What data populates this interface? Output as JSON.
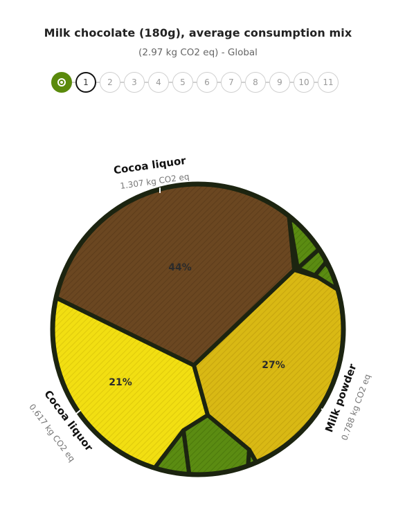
{
  "header": {
    "title": "Milk chocolate (180g), average consumption mix",
    "subtitle": "(2.97 kg CO2 eq) - Global"
  },
  "stepper": {
    "home_icon": "target-icon",
    "steps": [
      "1",
      "2",
      "3",
      "4",
      "5",
      "6",
      "7",
      "8",
      "9",
      "10",
      "11"
    ],
    "current": "1"
  },
  "colors": {
    "brown": "#6b4721",
    "yellow": "#f2df12",
    "mustard": "#d9b914",
    "green": "#5b8c12",
    "border": "#1c2410"
  },
  "chart_data": {
    "type": "voronoi-treemap",
    "title": "Milk chocolate (180g), average consumption mix",
    "subtitle": "(2.97 kg CO2 eq) - Global",
    "total": "2.97 kg CO2 eq",
    "cells": [
      {
        "name": "Cocoa liquor",
        "value_text": "1.307 kg CO2 eq",
        "percent_label": "44%",
        "color": "brown"
      },
      {
        "name": "Milk powder",
        "value_text": "0.788 kg CO2 eq",
        "percent_label": "27%",
        "color": "mustard"
      },
      {
        "name": "Cocoa liquor",
        "value_text": "0.617 kg CO2 eq",
        "percent_label": "21%",
        "color": "yellow"
      },
      {
        "name": "",
        "value_text": "",
        "percent_label": "",
        "color": "green"
      },
      {
        "name": "",
        "value_text": "",
        "percent_label": "",
        "color": "green"
      },
      {
        "name": "",
        "value_text": "",
        "percent_label": "",
        "color": "green"
      },
      {
        "name": "",
        "value_text": "",
        "percent_label": "",
        "color": "green"
      },
      {
        "name": "",
        "value_text": "",
        "percent_label": "",
        "color": "green"
      },
      {
        "name": "",
        "value_text": "",
        "percent_label": "",
        "color": "green"
      }
    ]
  }
}
